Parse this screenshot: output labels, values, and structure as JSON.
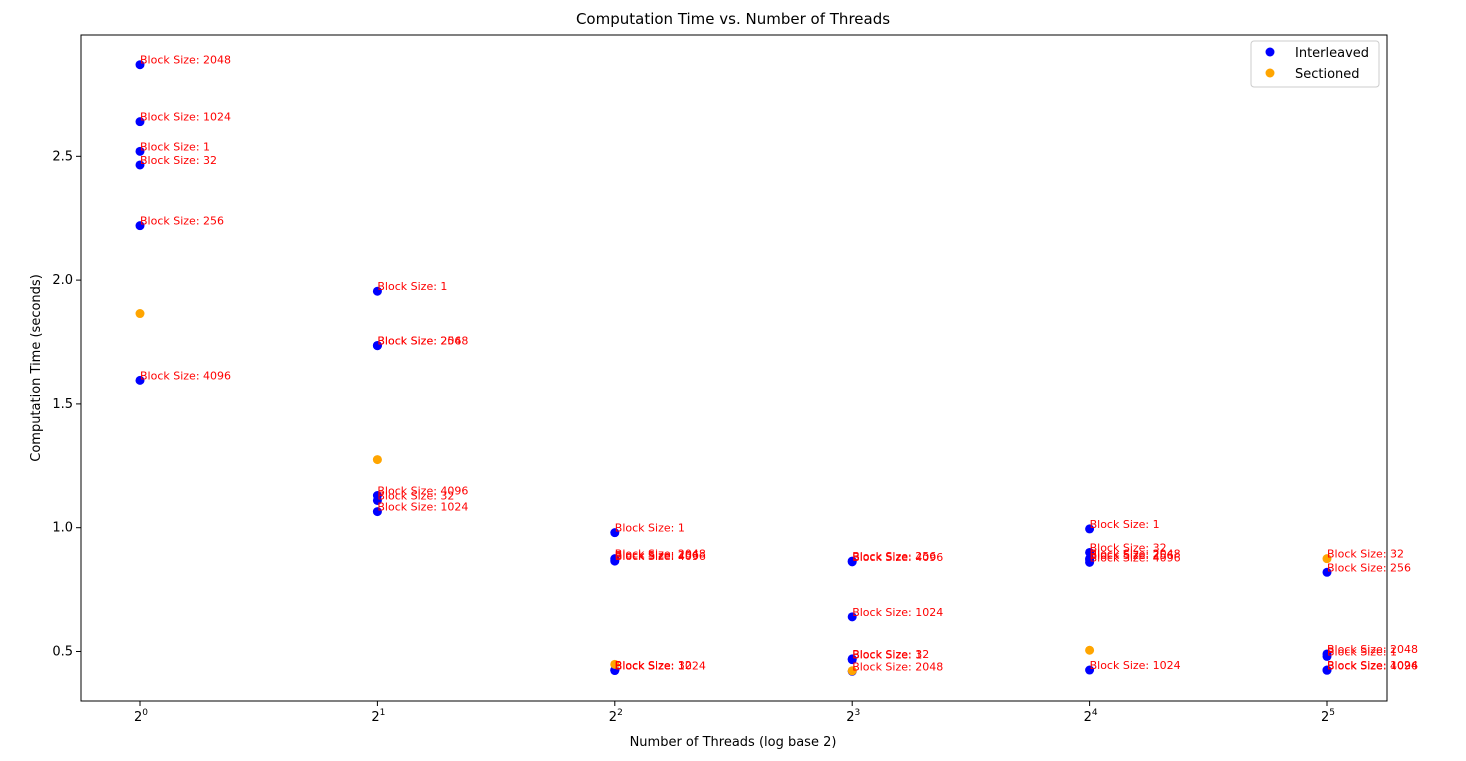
{
  "chart_data": {
    "type": "scatter",
    "title": "Computation Time vs. Number of Threads",
    "xlabel": "Number of Threads (log base 2)",
    "ylabel": "Computation Time (seconds)",
    "x_scale": "log2",
    "x_ticks": [
      1,
      2,
      4,
      8,
      16,
      32
    ],
    "x_tick_exponents": [
      "0",
      "1",
      "2",
      "3",
      "4",
      "5"
    ],
    "x_tick_base": "2",
    "ylim": [
      0.3,
      2.99
    ],
    "y_ticks": [
      0.5,
      1.0,
      1.5,
      2.0,
      2.5
    ],
    "y_tick_labels": [
      "0.5",
      "1.0",
      "1.5",
      "2.0",
      "2.5"
    ],
    "grid": false,
    "legend_position": "top-right",
    "series": [
      {
        "name": "Interleaved",
        "color": "#0000ff",
        "points": [
          {
            "x": 1,
            "y": 2.87,
            "label": "Block Size: 2048"
          },
          {
            "x": 1,
            "y": 2.64,
            "label": "Block Size: 1024"
          },
          {
            "x": 1,
            "y": 2.52,
            "label": "Block Size: 1"
          },
          {
            "x": 1,
            "y": 2.465,
            "label": "Block Size: 32"
          },
          {
            "x": 1,
            "y": 2.22,
            "label": "Block Size: 256"
          },
          {
            "x": 1,
            "y": 1.595,
            "label": "Block Size: 4096"
          },
          {
            "x": 2,
            "y": 1.955,
            "label": "Block Size: 1"
          },
          {
            "x": 2,
            "y": 1.735,
            "label": "Block Size: 256"
          },
          {
            "x": 2,
            "y": 1.736,
            "label": "Block Size: 2048"
          },
          {
            "x": 2,
            "y": 1.13,
            "label": "Block Size: 4096"
          },
          {
            "x": 2,
            "y": 1.11,
            "label": "Block Size: 32"
          },
          {
            "x": 2,
            "y": 1.065,
            "label": "Block Size: 1024"
          },
          {
            "x": 4,
            "y": 0.98,
            "label": "Block Size: 1"
          },
          {
            "x": 4,
            "y": 0.875,
            "label": "Block Size: 2048"
          },
          {
            "x": 4,
            "y": 0.87,
            "label": "Block Size: 256"
          },
          {
            "x": 4,
            "y": 0.865,
            "label": "Block Size: 4096"
          },
          {
            "x": 4,
            "y": 0.425,
            "label": "Block Size: 32"
          },
          {
            "x": 4,
            "y": 0.424,
            "label": "Block Size: 1"
          },
          {
            "x": 4,
            "y": 0.423,
            "label": "Block Size: 1024"
          },
          {
            "x": 8,
            "y": 0.865,
            "label": "Block Size: 256"
          },
          {
            "x": 8,
            "y": 0.862,
            "label": "Block Size: 4096"
          },
          {
            "x": 8,
            "y": 0.64,
            "label": "Block Size: 1024"
          },
          {
            "x": 8,
            "y": 0.47,
            "label": "Block Size: 32"
          },
          {
            "x": 8,
            "y": 0.467,
            "label": "Block Size: 1"
          },
          {
            "x": 8,
            "y": 0.42,
            "label": "Block Size: 2048"
          },
          {
            "x": 16,
            "y": 0.995,
            "label": "Block Size: 1"
          },
          {
            "x": 16,
            "y": 0.9,
            "label": "Block Size: 32"
          },
          {
            "x": 16,
            "y": 0.875,
            "label": "Block Size: 2048"
          },
          {
            "x": 16,
            "y": 0.87,
            "label": "Block Size: 256"
          },
          {
            "x": 16,
            "y": 0.86,
            "label": "Block Size: 4096"
          },
          {
            "x": 16,
            "y": 0.425,
            "label": "Block Size: 1024"
          },
          {
            "x": 32,
            "y": 0.82,
            "label": "Block Size: 256"
          },
          {
            "x": 32,
            "y": 0.49,
            "label": "Block Size: 2048"
          },
          {
            "x": 32,
            "y": 0.48,
            "label": "Block Size: 1"
          },
          {
            "x": 32,
            "y": 0.425,
            "label": "Block Size: 1024"
          },
          {
            "x": 32,
            "y": 0.424,
            "label": "Block Size: 4096"
          }
        ]
      },
      {
        "name": "Sectioned",
        "color": "#ffa500",
        "points": [
          {
            "x": 1,
            "y": 1.865
          },
          {
            "x": 2,
            "y": 1.275
          },
          {
            "x": 4,
            "y": 0.448
          },
          {
            "x": 8,
            "y": 0.422
          },
          {
            "x": 16,
            "y": 0.505
          },
          {
            "x": 32,
            "y": 0.875,
            "label": "Block Size: 32"
          }
        ]
      }
    ]
  }
}
